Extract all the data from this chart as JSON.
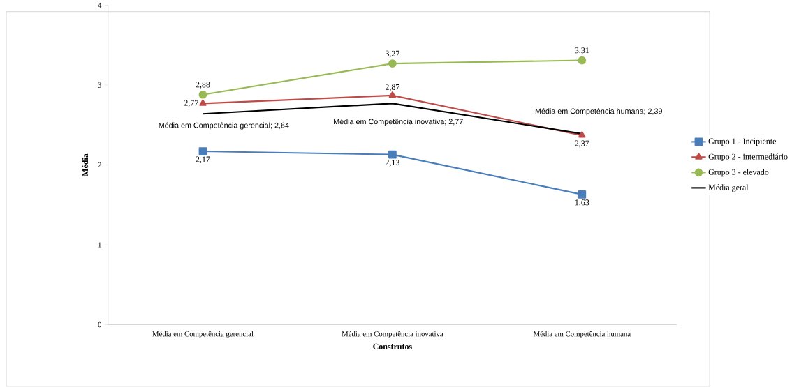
{
  "chart_data": {
    "type": "line",
    "xlabel": "Construtos",
    "ylabel": "Média",
    "categories": [
      "Média em Competência gerencial",
      "Média em Competência inovativa",
      "Média em Competência humana"
    ],
    "ylim": [
      0,
      4
    ],
    "yticks": [
      0,
      1,
      2,
      3,
      4
    ],
    "grid": false,
    "legend": "right",
    "series": [
      {
        "name": "Grupo 1 - Incipiente",
        "color": "#4a7ebb",
        "marker": "square",
        "values": [
          2.17,
          2.13,
          1.63
        ],
        "value_labels": [
          "2,17",
          "2,13",
          "1,63"
        ]
      },
      {
        "name": "Grupo 2 - intermediário",
        "color": "#be4b48",
        "marker": "triangle",
        "values": [
          2.77,
          2.87,
          2.37
        ],
        "value_labels": [
          "2,77",
          "2,87",
          "2,37"
        ]
      },
      {
        "name": "Grupo 3 - elevado",
        "color": "#98b954",
        "marker": "circle",
        "values": [
          2.88,
          3.27,
          3.31
        ],
        "value_labels": [
          "2,88",
          "3,27",
          "3,31"
        ]
      },
      {
        "name": "Média geral",
        "color": "#000000",
        "marker": "none",
        "values": [
          2.64,
          2.77,
          2.39
        ],
        "value_labels": [
          "Média em Competência gerencial; 2,64",
          "Média em Competência inovativa; 2,77",
          "Média em Competência humana; 2,39"
        ]
      }
    ]
  }
}
